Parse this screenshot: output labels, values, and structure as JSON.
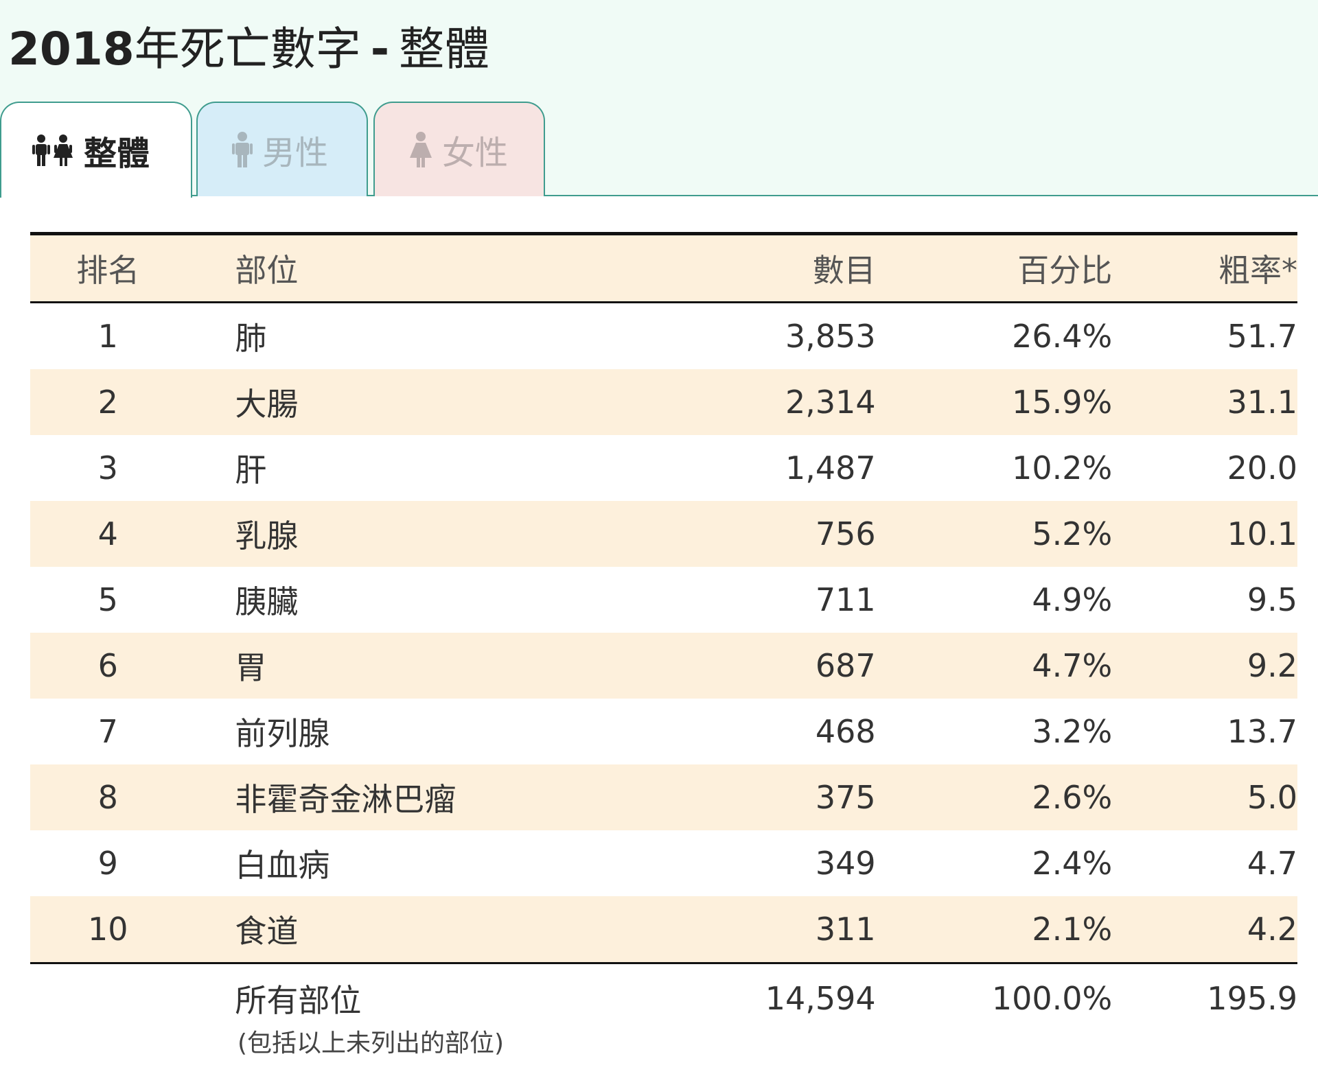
{
  "title": {
    "year": "2018",
    "text": "年死亡數字",
    "dash": "-",
    "scope": "整體"
  },
  "tabs": [
    {
      "label": "整體",
      "icon": "couple-icon"
    },
    {
      "label": "男性",
      "icon": "male-icon"
    },
    {
      "label": "女性",
      "icon": "female-icon"
    }
  ],
  "colors": {
    "accent": "#3f9c8e",
    "row_alt": "#fdf0dc",
    "tab_male": "#d6edf8",
    "tab_female": "#f7e4e2",
    "page_band": "#f0fbf6"
  },
  "table": {
    "headers": {
      "rank": "排名",
      "site": "部位",
      "count": "數目",
      "pct": "百分比",
      "rate": "粗率*"
    },
    "rows": [
      {
        "rank": "1",
        "site": "肺",
        "count": "3,853",
        "pct": "26.4%",
        "rate": "51.7"
      },
      {
        "rank": "2",
        "site": "大腸",
        "count": "2,314",
        "pct": "15.9%",
        "rate": "31.1"
      },
      {
        "rank": "3",
        "site": "肝",
        "count": "1,487",
        "pct": "10.2%",
        "rate": "20.0"
      },
      {
        "rank": "4",
        "site": "乳腺",
        "count": "756",
        "pct": "5.2%",
        "rate": "10.1"
      },
      {
        "rank": "5",
        "site": "胰臟",
        "count": "711",
        "pct": "4.9%",
        "rate": "9.5"
      },
      {
        "rank": "6",
        "site": "胃",
        "count": "687",
        "pct": "4.7%",
        "rate": "9.2"
      },
      {
        "rank": "7",
        "site": "前列腺",
        "count": "468",
        "pct": "3.2%",
        "rate": "13.7"
      },
      {
        "rank": "8",
        "site": "非霍奇金淋巴瘤",
        "count": "375",
        "pct": "2.6%",
        "rate": "5.0"
      },
      {
        "rank": "9",
        "site": "白血病",
        "count": "349",
        "pct": "2.4%",
        "rate": "4.7"
      },
      {
        "rank": "10",
        "site": "食道",
        "count": "311",
        "pct": "2.1%",
        "rate": "4.2"
      }
    ],
    "total": {
      "site": "所有部位",
      "count": "14,594",
      "pct": "100.0%",
      "rate": "195.9",
      "note": "(包括以上未列出的部位)"
    }
  }
}
